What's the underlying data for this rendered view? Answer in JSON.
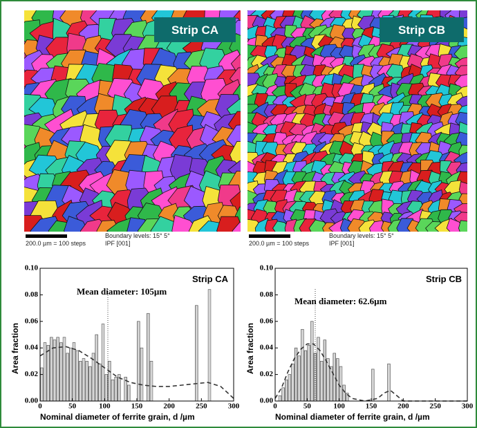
{
  "maps": [
    {
      "label": "Strip CA",
      "scale": "200.0 µm = 100 steps",
      "boundary": "Boundary levels: 15° 5°",
      "ipf": "IPF [001]"
    },
    {
      "label": "Strip CB",
      "scale": "200.0 µm = 100 steps",
      "boundary": "Boundary levels: 15° 5°",
      "ipf": "IPF [001]"
    }
  ],
  "chart_data": [
    {
      "type": "bar",
      "title": "Strip CA",
      "annotation": "Mean diameter: 105µm",
      "mean_x": 105,
      "x_label": "Nominal diameter of ferrite grain, d /µm",
      "y_label": "Area fraction",
      "x": [
        2.5,
        7.5,
        12.5,
        17.5,
        22.5,
        27.5,
        32.5,
        37.5,
        42.5,
        47.5,
        52.5,
        57.5,
        62.5,
        67.5,
        72.5,
        77.5,
        82.5,
        87.5,
        92.5,
        97.5,
        102.5,
        107.5,
        112.5,
        117.5,
        122.5,
        132.5,
        137.5,
        152.5,
        157.5,
        167.5,
        172.5,
        242.5,
        262.5
      ],
      "values": [
        0.025,
        0.044,
        0.042,
        0.048,
        0.046,
        0.048,
        0.044,
        0.048,
        0.036,
        0.04,
        0.044,
        0.038,
        0.03,
        0.032,
        0.03,
        0.026,
        0.036,
        0.05,
        0.028,
        0.058,
        0.02,
        0.03,
        0.016,
        0.018,
        0.02,
        0.018,
        0.012,
        0.06,
        0.04,
        0.066,
        0.03,
        0.072,
        0.084
      ],
      "curve": {
        "x": [
          0,
          20,
          40,
          60,
          80,
          100,
          120,
          140,
          160,
          180,
          200,
          220,
          240,
          260,
          280,
          300
        ],
        "values": [
          0.034,
          0.04,
          0.041,
          0.038,
          0.032,
          0.025,
          0.018,
          0.014,
          0.012,
          0.011,
          0.011,
          0.012,
          0.013,
          0.014,
          0.011,
          0.002
        ]
      },
      "bin_width": 5,
      "xlim": [
        0,
        300
      ],
      "ylim": [
        0,
        0.1
      ],
      "xticks": [
        0,
        50,
        100,
        150,
        200,
        250,
        300
      ],
      "yticks": [
        {
          "value": 0,
          "label": "0.00"
        },
        {
          "value": 0.02,
          "label": "0.02"
        },
        {
          "value": 0.04,
          "label": "0.04"
        },
        {
          "value": 0.06,
          "label": "0.06"
        },
        {
          "value": 0.08,
          "label": "0.08"
        },
        {
          "value": 0.1,
          "label": "0.10"
        }
      ]
    },
    {
      "type": "bar",
      "title": "Strip CB",
      "annotation": "Mean diameter: 62.6µm",
      "mean_x": 62.6,
      "x_label": "Nominal diameter of ferrite grain, d /µm",
      "y_label": "Area fraction",
      "x": [
        7.5,
        12.5,
        17.5,
        22.5,
        27.5,
        32.5,
        37.5,
        42.5,
        47.5,
        52.5,
        57.5,
        62.5,
        67.5,
        72.5,
        77.5,
        82.5,
        87.5,
        92.5,
        97.5,
        102.5,
        107.5,
        112.5,
        152.5,
        177.5
      ],
      "values": [
        0.004,
        0.01,
        0.016,
        0.02,
        0.028,
        0.04,
        0.034,
        0.054,
        0.038,
        0.042,
        0.06,
        0.036,
        0.048,
        0.03,
        0.046,
        0.032,
        0.026,
        0.036,
        0.032,
        0.026,
        0.012,
        0.006,
        0.024,
        0.028
      ],
      "curve": {
        "x": [
          0,
          10,
          20,
          30,
          40,
          50,
          60,
          70,
          80,
          90,
          100,
          110,
          120,
          140,
          160,
          170,
          180,
          190,
          200,
          300
        ],
        "values": [
          0.002,
          0.01,
          0.022,
          0.032,
          0.039,
          0.043,
          0.043,
          0.038,
          0.03,
          0.021,
          0.012,
          0.006,
          0.002,
          0,
          0.002,
          0.006,
          0.008,
          0.004,
          0,
          0
        ]
      },
      "bin_width": 5,
      "xlim": [
        0,
        300
      ],
      "ylim": [
        0,
        0.1
      ],
      "xticks": [
        0,
        50,
        100,
        150,
        200,
        250,
        300
      ],
      "yticks": [
        {
          "value": 0,
          "label": "0.00"
        },
        {
          "value": 0.02,
          "label": "0.02"
        },
        {
          "value": 0.04,
          "label": "0.04"
        },
        {
          "value": 0.06,
          "label": "0.06"
        },
        {
          "value": 0.08,
          "label": "0.08"
        },
        {
          "value": 0.1,
          "label": "0.10"
        }
      ]
    }
  ]
}
